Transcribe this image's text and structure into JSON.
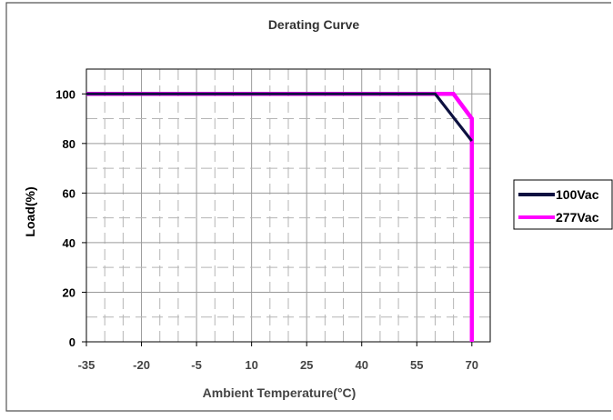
{
  "chart_data": {
    "type": "line",
    "title": "Derating Curve",
    "xlabel": "Ambient Temperature(°C)",
    "ylabel": "Load(%)",
    "x_ticks": [
      "-35",
      "-20",
      "-5",
      "10",
      "25",
      "40",
      "55",
      "70"
    ],
    "y_ticks": [
      "0",
      "20",
      "40",
      "60",
      "80",
      "100"
    ],
    "xlim": [
      -35,
      75
    ],
    "ylim": [
      0,
      110
    ],
    "grid": true,
    "legend_position": "right",
    "series": [
      {
        "name": "100Vac",
        "color": "#0d1140",
        "points": [
          [
            -35,
            100
          ],
          [
            60,
            100
          ],
          [
            70,
            81
          ]
        ]
      },
      {
        "name": "277Vac",
        "color": "#ff00ff",
        "points": [
          [
            -35,
            100
          ],
          [
            65,
            100
          ],
          [
            70,
            90
          ],
          [
            70,
            0
          ]
        ]
      }
    ]
  }
}
